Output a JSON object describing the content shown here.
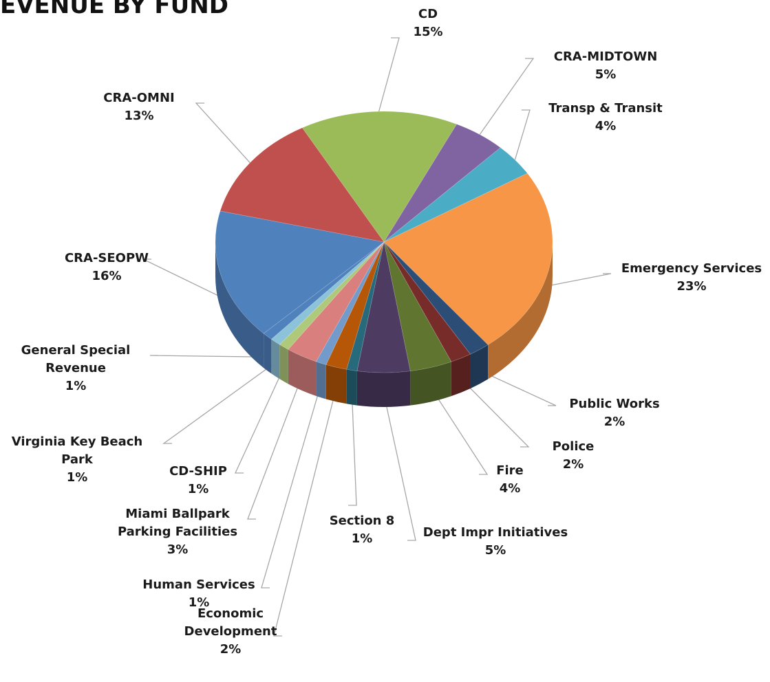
{
  "chart_data": {
    "type": "pie",
    "title": "EVENUE BY FUND",
    "categories": [
      "CD",
      "CRA-MIDTOWN",
      "Transp & Transit",
      "Emergency Services",
      "Public Works",
      "Police",
      "Fire",
      "Dept Impr Initiatives",
      "Section 8",
      "Economic Development",
      "Human Services",
      "Miami Ballpark Parking Facilities",
      "CD-SHIP",
      "Virginia Key Beach Park",
      "General Special Revenue",
      "CRA-SEOPW",
      "CRA-OMNI"
    ],
    "values": [
      15,
      5,
      4,
      23,
      2,
      2,
      4,
      5,
      1,
      2,
      1,
      3,
      1,
      1,
      1,
      16,
      13
    ],
    "value_labels": [
      "15%",
      "5%",
      "4%",
      "23%",
      "2%",
      "2%",
      "4%",
      "5%",
      "1%",
      "2%",
      "1%",
      "3%",
      "1%",
      "1%",
      "1%",
      "16%",
      "13%"
    ],
    "colors": [
      "#9bbb59",
      "#8064a2",
      "#4bacc6",
      "#f79646",
      "#2c4d75",
      "#772c2a",
      "#5f7530",
      "#4d3b62",
      "#276a7c",
      "#b65708",
      "#729aca",
      "#d9807e",
      "#afc97a",
      "#8cc3d9",
      "#4f81bd",
      "#4f81bd",
      "#c0504d"
    ]
  }
}
